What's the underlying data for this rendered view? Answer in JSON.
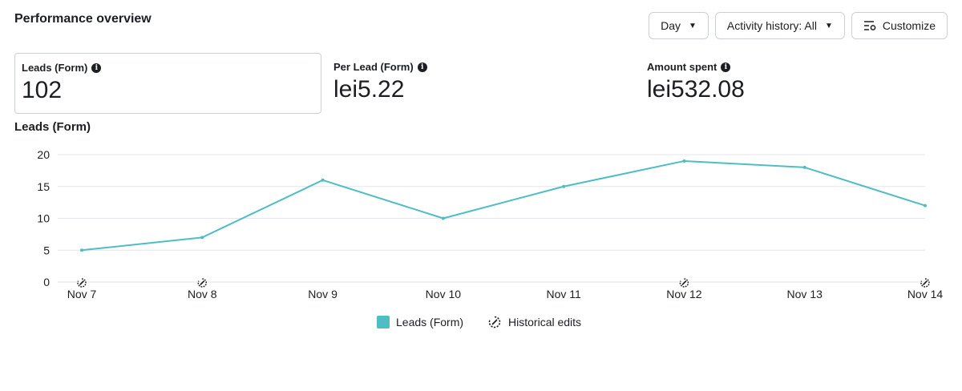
{
  "header": {
    "title": "Performance overview",
    "day_label": "Day",
    "activity_label": "Activity history: All",
    "customize_label": "Customize"
  },
  "metrics": [
    {
      "label": "Leads (Form)",
      "value": "102"
    },
    {
      "label": "Per Lead (Form)",
      "value": "lei5.22"
    },
    {
      "label": "Amount spent",
      "value": "lei532.08"
    }
  ],
  "chart_title": "Leads (Form)",
  "colors": {
    "line": "#4fbdc4",
    "grid": "#e4e6eb",
    "text": "#1c1e21"
  },
  "legend": {
    "series": "Leads (Form)",
    "edits": "Historical edits"
  },
  "chart_data": {
    "type": "line",
    "title": "Leads (Form)",
    "categories": [
      "Nov 7",
      "Nov 8",
      "Nov 9",
      "Nov 10",
      "Nov 11",
      "Nov 12",
      "Nov 13",
      "Nov 14"
    ],
    "series": [
      {
        "name": "Leads (Form)",
        "values": [
          5,
          7,
          16,
          10,
          15,
          19,
          18,
          12
        ]
      }
    ],
    "yticks": [
      0,
      5,
      10,
      15,
      20
    ],
    "ylim": [
      0,
      20
    ],
    "grid": true,
    "legend_position": "bottom",
    "edit_markers": [
      "Nov 7",
      "Nov 8",
      "Nov 12",
      "Nov 14"
    ]
  }
}
